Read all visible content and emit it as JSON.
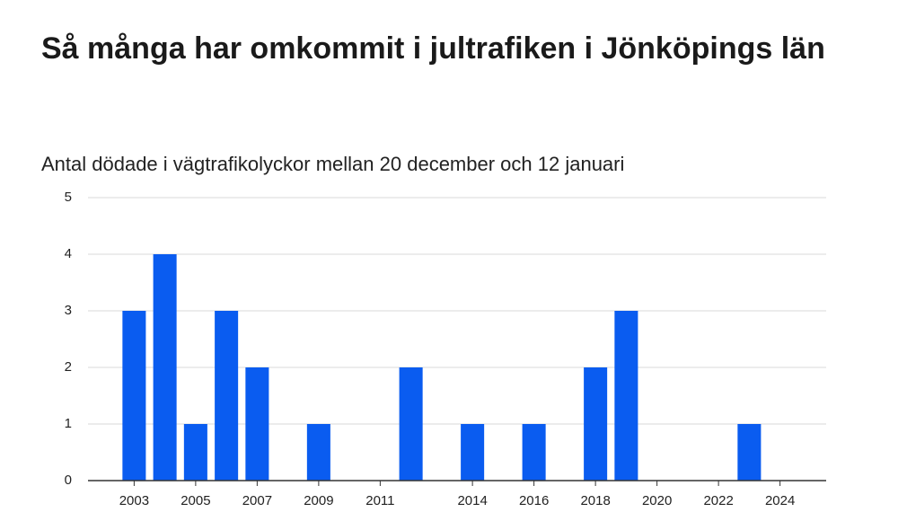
{
  "chart_data": {
    "type": "bar",
    "title": "Så många har omkommit i jultrafiken i Jönköpings län",
    "subtitle": "Antal dödade i vägtrafikolyckor mellan 20 december och 12 januari",
    "x": [
      2003,
      2004,
      2005,
      2006,
      2007,
      2008,
      2009,
      2010,
      2011,
      2012,
      2013,
      2014,
      2015,
      2016,
      2017,
      2018,
      2019,
      2020,
      2021,
      2022,
      2023,
      2024
    ],
    "values": [
      3,
      4,
      1,
      3,
      2,
      0,
      1,
      0,
      0,
      2,
      0,
      1,
      0,
      1,
      0,
      2,
      3,
      0,
      0,
      0,
      1,
      0
    ],
    "color": "#0a5cf0",
    "xlim": [
      2001.5,
      2025.5
    ],
    "xticks": [
      2003,
      2005,
      2007,
      2009,
      2011,
      2014,
      2016,
      2018,
      2020,
      2022,
      2024
    ],
    "ylim": [
      0,
      5
    ],
    "yticks": [
      0,
      1,
      2,
      3,
      4,
      5
    ],
    "grid": true
  }
}
